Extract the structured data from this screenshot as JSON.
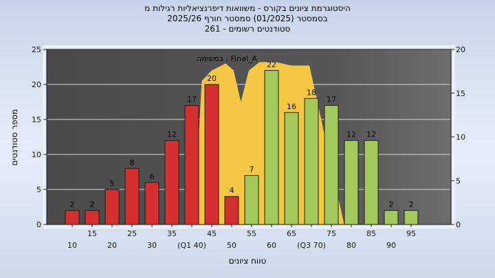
{
  "header": {
    "line1": "היסטוגרמת ציונים בקורס - משוואות דיפרנציאליות רגילות מ",
    "line2": "בסמסטר (01/2025) סמסטר חורף 2025/26",
    "line3": "סטודנטים רשומים - 261"
  },
  "annotation": {
    "text": "במשימה : Final_A"
  },
  "axes": {
    "x_title": "טווח ציונים",
    "y_title": "מספר סטודנטים"
  },
  "chart_data": {
    "type": "bar",
    "title": "היסטוגרמת ציונים בקורס - משוואות דיפרנציאליות רגילות מ",
    "subtitle": "בסמסטר (01/2025) סמסטר חורף 2025/26",
    "registered_students_note": "סטודנטים רשומים - 261",
    "annotation": "במשימה : Final_A",
    "xlabel": "טווח ציונים",
    "ylabel": "מספר סטודנטים",
    "categories": [
      "10",
      "15",
      "20",
      "25",
      "30",
      "35",
      "(Q1 40)",
      "45",
      "50",
      "55",
      "60",
      "65",
      "(Q3 70)",
      "75",
      "80",
      "85",
      "90",
      "95"
    ],
    "values": [
      2,
      2,
      5,
      8,
      6,
      12,
      17,
      20,
      4,
      7,
      22,
      16,
      18,
      17,
      12,
      12,
      2,
      2
    ],
    "bar_colors": [
      "red",
      "red",
      "red",
      "red",
      "red",
      "red",
      "red",
      "red",
      "red",
      "green",
      "green",
      "green",
      "green",
      "green",
      "green",
      "green",
      "green",
      "green"
    ],
    "palette": {
      "red": "#d43030",
      "green": "#a3c95c",
      "area": "#f5c742",
      "plot_bg": "#555555"
    },
    "y_left": {
      "min": 0,
      "max": 25,
      "ticks": [
        0,
        5,
        10,
        15,
        20,
        25
      ]
    },
    "y_right": {
      "min": 0,
      "max": 20,
      "ticks": [
        0,
        5,
        10,
        15,
        20
      ]
    },
    "gridlines_at_left_values": [
      5,
      10,
      15,
      20
    ],
    "legend_position": "none",
    "area_series": {
      "name": "reference-distribution-band",
      "points": [
        [
          40.5,
          0
        ],
        [
          42.5,
          20.5
        ],
        [
          45,
          22
        ],
        [
          48.5,
          23
        ],
        [
          50.5,
          22
        ],
        [
          52.3,
          17.5
        ],
        [
          54.3,
          22
        ],
        [
          57,
          23.2
        ],
        [
          61,
          23.2
        ],
        [
          65,
          22.7
        ],
        [
          69.5,
          22.7
        ],
        [
          78.2,
          0
        ]
      ]
    }
  }
}
